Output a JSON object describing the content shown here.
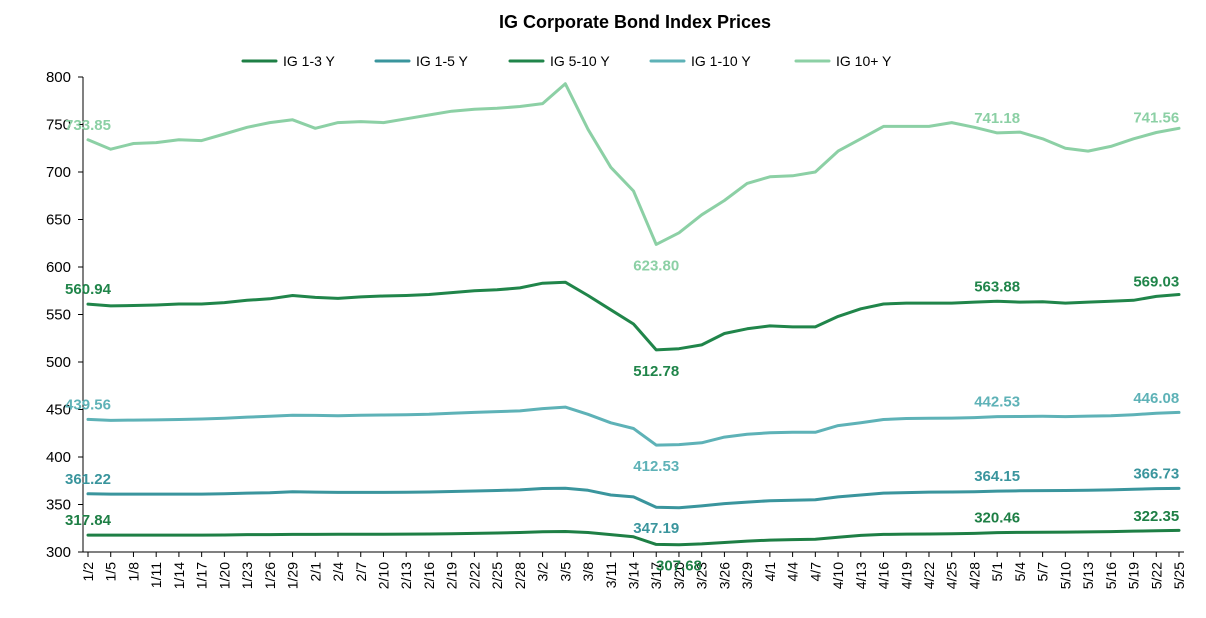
{
  "chart_data": {
    "type": "line",
    "title": "IG Corporate Bond Index Prices",
    "xlabel": "",
    "ylabel": "",
    "ylim": [
      300,
      800
    ],
    "yticks": [
      300,
      350,
      400,
      450,
      500,
      550,
      600,
      650,
      700,
      750,
      800
    ],
    "grid": false,
    "legend": "top",
    "x": [
      "1/2",
      "1/5",
      "1/8",
      "1/11",
      "1/14",
      "1/17",
      "1/20",
      "1/23",
      "1/26",
      "1/29",
      "2/1",
      "2/4",
      "2/7",
      "2/10",
      "2/13",
      "2/16",
      "2/19",
      "2/22",
      "2/25",
      "2/28",
      "3/2",
      "3/5",
      "3/8",
      "3/11",
      "3/14",
      "3/17",
      "3/20",
      "3/23",
      "3/26",
      "3/29",
      "4/1",
      "4/4",
      "4/7",
      "4/10",
      "4/13",
      "4/16",
      "4/19",
      "4/22",
      "4/25",
      "4/28",
      "5/1",
      "5/4",
      "5/7",
      "5/10",
      "5/13",
      "5/16",
      "5/19",
      "5/22",
      "5/25"
    ],
    "series": [
      {
        "name": "IG 1-3 Y",
        "color": "#1e7f45",
        "values": [
          317.84,
          317.8,
          317.8,
          317.8,
          317.8,
          317.8,
          317.9,
          318.3,
          318.3,
          318.5,
          318.5,
          318.6,
          318.6,
          318.7,
          318.8,
          319.0,
          319.3,
          319.6,
          320.0,
          320.5,
          321.4,
          321.6,
          320.5,
          318.3,
          316.0,
          308.0,
          307.68,
          308.5,
          310.0,
          311.5,
          312.5,
          313.0,
          313.5,
          315.5,
          317.5,
          318.5,
          318.8,
          319.0,
          319.2,
          319.6,
          320.46,
          320.6,
          320.8,
          320.9,
          321.2,
          321.5,
          322.0,
          322.35,
          322.7
        ],
        "labels": [
          {
            "i": 0,
            "text": "317.84",
            "pos": "above"
          },
          {
            "i": 26,
            "text": "307.68",
            "pos": "below"
          },
          {
            "i": 40,
            "text": "320.46",
            "pos": "above"
          },
          {
            "i": 47,
            "text": "322.35",
            "pos": "above"
          }
        ]
      },
      {
        "name": "IG 1-5 Y",
        "color": "#3a959d",
        "values": [
          361.22,
          361.0,
          361.0,
          361.0,
          361.0,
          361.0,
          361.3,
          362.0,
          362.3,
          363.4,
          363.0,
          362.7,
          362.7,
          362.7,
          362.8,
          363.2,
          363.7,
          364.2,
          364.7,
          365.4,
          366.8,
          367.2,
          365.0,
          360.0,
          358.0,
          347.19,
          346.5,
          348.5,
          351.0,
          352.5,
          354.0,
          354.5,
          355.0,
          358.0,
          360.0,
          362.0,
          362.5,
          363.0,
          363.2,
          363.5,
          364.15,
          364.4,
          364.6,
          364.7,
          365.0,
          365.4,
          366.0,
          366.73,
          367.0
        ],
        "labels": [
          {
            "i": 0,
            "text": "361.22",
            "pos": "above"
          },
          {
            "i": 25,
            "text": "347.19",
            "pos": "below"
          },
          {
            "i": 40,
            "text": "364.15",
            "pos": "above"
          },
          {
            "i": 47,
            "text": "366.73",
            "pos": "above"
          }
        ]
      },
      {
        "name": "IG 5-10 Y",
        "color": "#20854a",
        "values": [
          560.94,
          559.0,
          559.5,
          560.0,
          561.0,
          561.0,
          562.5,
          565.0,
          566.5,
          570.0,
          568.0,
          567.0,
          568.5,
          569.5,
          570.0,
          571.0,
          573.0,
          575.0,
          576.0,
          578.0,
          583.0,
          584.0,
          570.0,
          555.0,
          540.0,
          512.78,
          514.0,
          518.0,
          530.0,
          535.0,
          538.0,
          537.0,
          537.0,
          548.0,
          556.0,
          561.0,
          562.0,
          562.0,
          562.0,
          563.0,
          563.88,
          563.0,
          563.5,
          562.0,
          563.0,
          564.0,
          565.0,
          569.03,
          571.0
        ],
        "labels": [
          {
            "i": 0,
            "text": "560.94",
            "pos": "above"
          },
          {
            "i": 25,
            "text": "512.78",
            "pos": "below"
          },
          {
            "i": 40,
            "text": "563.88",
            "pos": "above"
          },
          {
            "i": 47,
            "text": "569.03",
            "pos": "above"
          }
        ]
      },
      {
        "name": "IG 1-10 Y",
        "color": "#5eb2b7",
        "values": [
          439.56,
          438.5,
          438.8,
          439.0,
          439.5,
          440.0,
          440.8,
          442.0,
          442.8,
          444.0,
          443.8,
          443.5,
          444.0,
          444.2,
          444.5,
          445.0,
          446.0,
          447.0,
          447.8,
          448.5,
          451.0,
          452.5,
          445.0,
          436.0,
          430.0,
          412.53,
          413.0,
          415.0,
          421.0,
          424.0,
          425.5,
          426.0,
          426.0,
          433.0,
          436.0,
          439.5,
          440.5,
          440.8,
          441.0,
          441.5,
          442.53,
          442.6,
          442.8,
          442.5,
          443.0,
          443.5,
          444.5,
          446.08,
          447.0
        ],
        "labels": [
          {
            "i": 0,
            "text": "439.56",
            "pos": "above"
          },
          {
            "i": 25,
            "text": "412.53",
            "pos": "below"
          },
          {
            "i": 40,
            "text": "442.53",
            "pos": "above"
          },
          {
            "i": 47,
            "text": "446.08",
            "pos": "above"
          }
        ]
      },
      {
        "name": "IG 10+ Y",
        "color": "#8cd0a5",
        "values": [
          733.85,
          724.0,
          730.0,
          731.0,
          734.0,
          733.0,
          740.0,
          747.0,
          752.0,
          755.0,
          746.0,
          752.0,
          753.0,
          752.0,
          756.0,
          760.0,
          764.0,
          766.0,
          767.0,
          769.0,
          772.0,
          793.0,
          745.0,
          705.0,
          680.0,
          623.8,
          636.0,
          655.0,
          670.0,
          688.0,
          695.0,
          696.0,
          700.0,
          722.0,
          735.0,
          748.0,
          748.0,
          748.0,
          752.0,
          747.0,
          741.18,
          742.0,
          735.0,
          725.0,
          722.0,
          727.0,
          735.0,
          741.56,
          746.0
        ],
        "labels": [
          {
            "i": 0,
            "text": "733.85",
            "pos": "above"
          },
          {
            "i": 25,
            "text": "623.80",
            "pos": "below"
          },
          {
            "i": 40,
            "text": "741.18",
            "pos": "above"
          },
          {
            "i": 47,
            "text": "741.56",
            "pos": "above"
          }
        ]
      }
    ]
  }
}
